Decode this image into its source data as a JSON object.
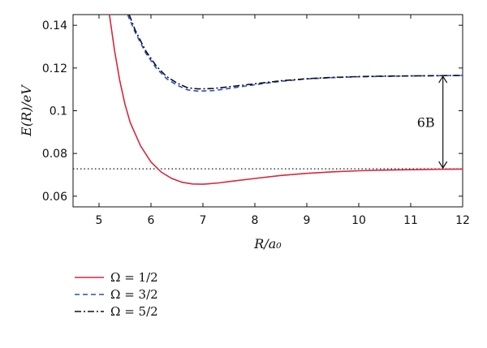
{
  "chart_data": {
    "type": "line",
    "xlabel": "R/a₀",
    "ylabel": "E(R)/eV",
    "xlim": [
      4.5,
      12
    ],
    "ylim": [
      0.055,
      0.145
    ],
    "x_ticks": [
      "5",
      "6",
      "7",
      "8",
      "9",
      "10",
      "11",
      "12"
    ],
    "y_ticks": [
      "0.06",
      "0.08",
      "0.1",
      "0.12",
      "0.14"
    ],
    "series": [
      {
        "name": "Ω = 1/2",
        "color": "#d7263d",
        "dash": "solid",
        "points": [
          [
            5.2,
            0.145
          ],
          [
            5.3,
            0.128
          ],
          [
            5.4,
            0.114
          ],
          [
            5.5,
            0.103
          ],
          [
            5.6,
            0.0945
          ],
          [
            5.8,
            0.0835
          ],
          [
            6.0,
            0.076
          ],
          [
            6.2,
            0.0712
          ],
          [
            6.4,
            0.0683
          ],
          [
            6.6,
            0.0665
          ],
          [
            6.8,
            0.0657
          ],
          [
            7.0,
            0.0656
          ],
          [
            7.3,
            0.0662
          ],
          [
            7.6,
            0.0671
          ],
          [
            8.0,
            0.0683
          ],
          [
            8.5,
            0.0697
          ],
          [
            9.0,
            0.0707
          ],
          [
            9.5,
            0.0714
          ],
          [
            10.0,
            0.0719
          ],
          [
            10.5,
            0.0722
          ],
          [
            11.0,
            0.0724
          ],
          [
            11.5,
            0.0726
          ],
          [
            12.0,
            0.0727
          ]
        ]
      },
      {
        "name": "Ω = 3/2",
        "color": "#2b4bd8",
        "dash": "dashed",
        "points": [
          [
            5.55,
            0.145
          ],
          [
            5.7,
            0.1365
          ],
          [
            5.9,
            0.127
          ],
          [
            6.1,
            0.12
          ],
          [
            6.3,
            0.115
          ],
          [
            6.5,
            0.112
          ],
          [
            6.7,
            0.1098
          ],
          [
            6.9,
            0.1092
          ],
          [
            7.2,
            0.1094
          ],
          [
            7.5,
            0.1104
          ],
          [
            8.0,
            0.1122
          ],
          [
            8.5,
            0.1138
          ],
          [
            9.0,
            0.1149
          ],
          [
            9.5,
            0.1155
          ],
          [
            10.0,
            0.1159
          ],
          [
            10.5,
            0.1161
          ],
          [
            11.0,
            0.1163
          ],
          [
            11.5,
            0.1164
          ],
          [
            12.0,
            0.1165
          ]
        ]
      },
      {
        "name": "Ω = 5/2",
        "color": "#111111",
        "dash": "dashdot",
        "points": [
          [
            5.58,
            0.145
          ],
          [
            5.7,
            0.1375
          ],
          [
            5.9,
            0.128
          ],
          [
            6.1,
            0.121
          ],
          [
            6.3,
            0.116
          ],
          [
            6.5,
            0.113
          ],
          [
            6.7,
            0.1108
          ],
          [
            6.9,
            0.1102
          ],
          [
            7.2,
            0.1104
          ],
          [
            7.5,
            0.1112
          ],
          [
            8.0,
            0.1126
          ],
          [
            8.5,
            0.114
          ],
          [
            9.0,
            0.115
          ],
          [
            9.5,
            0.1156
          ],
          [
            10.0,
            0.116
          ],
          [
            10.5,
            0.1162
          ],
          [
            11.0,
            0.1163
          ],
          [
            11.5,
            0.1164
          ],
          [
            12.0,
            0.1165
          ]
        ]
      }
    ],
    "reference_line": {
      "y": 0.0728,
      "style": "dotted"
    },
    "annotation": {
      "text": "6B",
      "x": 11.62,
      "y_from": 0.0728,
      "y_to": 0.1165
    },
    "grid": false,
    "legend_position": "bottom-left"
  }
}
